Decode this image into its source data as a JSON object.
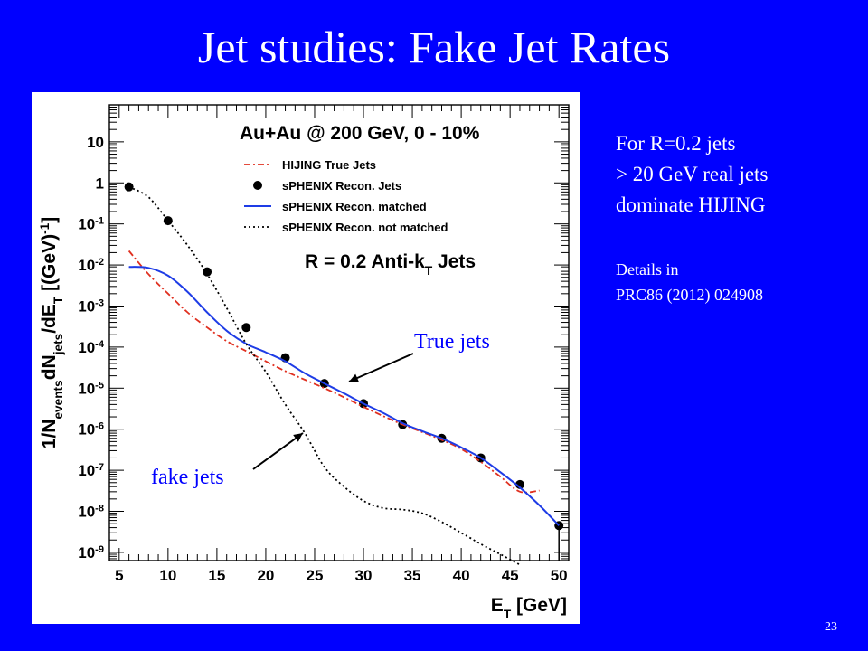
{
  "slide": {
    "title": "Jet studies: Fake Jet Rates",
    "page_number": "23",
    "side_notes": [
      "For R=0.2 jets",
      "> 20 GeV real jets",
      "dominate HIJING"
    ],
    "details": [
      "Details in",
      "PRC86 (2012)  024908"
    ],
    "annotations": {
      "true_jets": "True jets",
      "fake_jets": "fake jets"
    }
  },
  "chart_data": {
    "type": "line",
    "title": "Au+Au @ 200 GeV, 0 - 10%",
    "subtitle": "R = 0.2 Anti-k",
    "subtitle_sub": "T",
    "subtitle_tail": " Jets",
    "xlabel": "E",
    "xlabel_sub": "T",
    "xlabel_tail": " [GeV]",
    "ylabel": "1/N",
    "ylabel_parts": [
      "1/N",
      "events",
      "dN",
      "jets",
      "/dE",
      "T",
      " [(GeV)",
      "-1",
      "]"
    ],
    "xlim": [
      4,
      51
    ],
    "ylim_log10": [
      -9.2,
      1.9
    ],
    "y_scale": "log",
    "grid": false,
    "legend_position": "top-center",
    "x_ticks": [
      "5",
      "10",
      "15",
      "20",
      "25",
      "30",
      "35",
      "40",
      "45",
      "50"
    ],
    "y_ticks": [
      {
        "exp": 1,
        "label": "10"
      },
      {
        "exp": 0,
        "label": "1"
      },
      {
        "exp": -1,
        "label": "10",
        "sup": "-1"
      },
      {
        "exp": -2,
        "label": "10",
        "sup": "-2"
      },
      {
        "exp": -3,
        "label": "10",
        "sup": "-3"
      },
      {
        "exp": -4,
        "label": "10",
        "sup": "-4"
      },
      {
        "exp": -5,
        "label": "10",
        "sup": "-5"
      },
      {
        "exp": -6,
        "label": "10",
        "sup": "-6"
      },
      {
        "exp": -7,
        "label": "10",
        "sup": "-7"
      },
      {
        "exp": -8,
        "label": "10",
        "sup": "-8"
      },
      {
        "exp": -9,
        "label": "10",
        "sup": "-9"
      }
    ],
    "series": [
      {
        "name": "HIJING True Jets",
        "style": "dash-dot",
        "color": "#E03020",
        "x": [
          6,
          8,
          10,
          12,
          14,
          16,
          18,
          20,
          22,
          24,
          26,
          28,
          30,
          32,
          34,
          36,
          38,
          40,
          42,
          44,
          46,
          48
        ],
        "y": [
          0.022,
          0.006,
          0.002,
          0.0007,
          0.0003,
          0.00014,
          8e-05,
          4.5e-05,
          2.6e-05,
          1.6e-05,
          1e-05,
          6e-06,
          3.5e-06,
          2.1e-06,
          1.3e-06,
          8.5e-07,
          5.5e-07,
          3.3e-07,
          1.6e-07,
          7e-08,
          3e-08,
          3.2e-08
        ]
      },
      {
        "name": "sPHENIX Recon. Jets",
        "style": "markers",
        "color": "#000000",
        "x": [
          6,
          10,
          14,
          18,
          22,
          26,
          30,
          34,
          38,
          42,
          46,
          50
        ],
        "y": [
          0.8,
          0.12,
          0.0068,
          0.0003,
          5.5e-05,
          1.3e-05,
          4.2e-06,
          1.3e-06,
          6e-07,
          2e-07,
          4.5e-08,
          4.5e-09
        ]
      },
      {
        "name": "sPHENIX Recon. matched",
        "style": "solid",
        "color": "#1E3CE6",
        "x": [
          6,
          8,
          10,
          12,
          14,
          16,
          18,
          20,
          22,
          24,
          26,
          28,
          30,
          32,
          34,
          36,
          38,
          40,
          42,
          44,
          46,
          48,
          50
        ],
        "y": [
          0.009,
          0.0085,
          0.0055,
          0.0022,
          0.0007,
          0.00025,
          0.00012,
          7.5e-05,
          4.5e-05,
          2.3e-05,
          1.3e-05,
          7.5e-06,
          4.2e-06,
          2.5e-06,
          1.4e-06,
          9e-07,
          6e-07,
          3.6e-07,
          2e-07,
          9e-08,
          3.8e-08,
          1.4e-08,
          4.5e-09
        ]
      },
      {
        "name": "sPHENIX Recon. not matched",
        "style": "dotted",
        "color": "#000000",
        "x": [
          6,
          8,
          10,
          12,
          14,
          16,
          18,
          20,
          22,
          24,
          26,
          28,
          30,
          32,
          34,
          36,
          38,
          40,
          42,
          44,
          46
        ],
        "y": [
          0.8,
          0.45,
          0.12,
          0.03,
          0.006,
          0.0009,
          0.00012,
          2.5e-05,
          4e-06,
          8e-07,
          1.2e-07,
          4e-08,
          1.8e-08,
          1.2e-08,
          1.1e-08,
          9e-09,
          5.5e-09,
          3e-09,
          1.6e-09,
          9e-10,
          5e-10
        ]
      }
    ]
  }
}
